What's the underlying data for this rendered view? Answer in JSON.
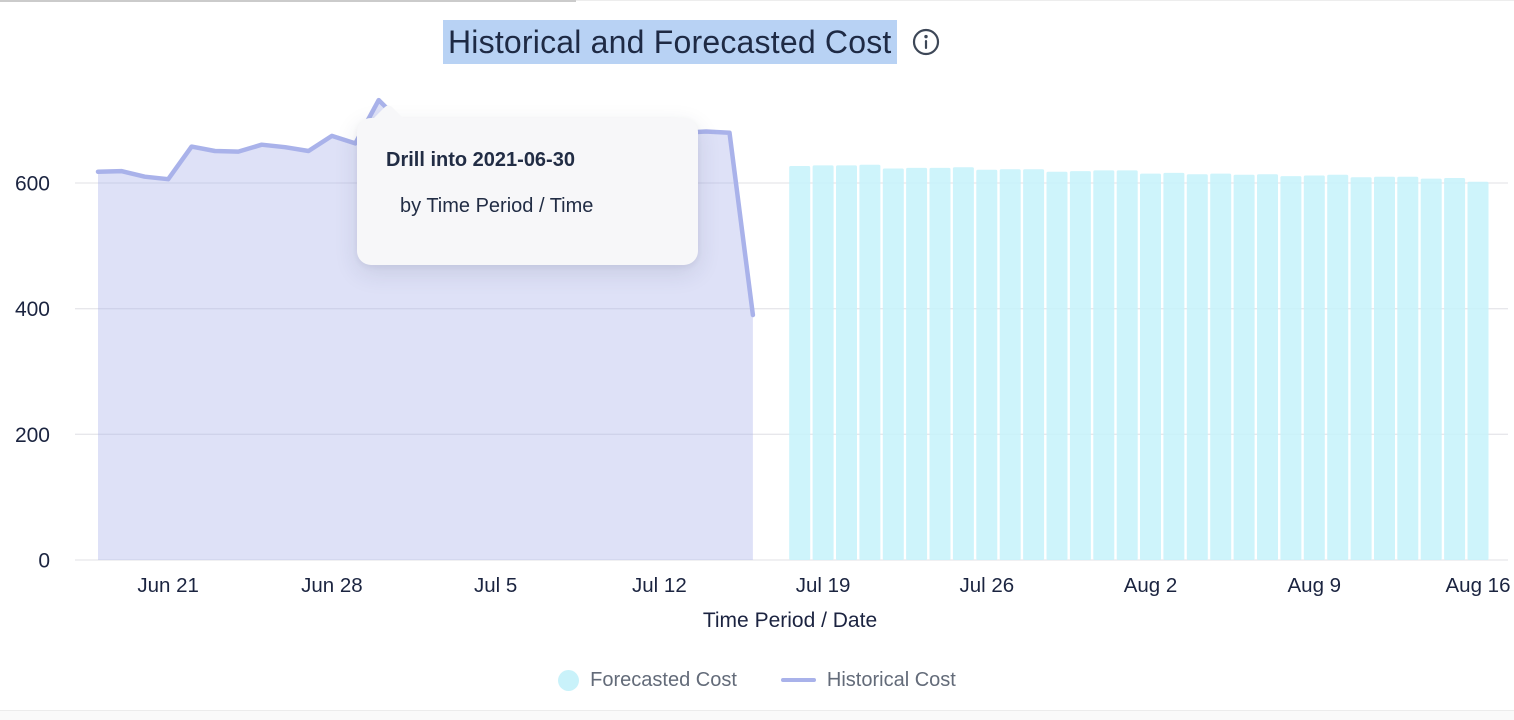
{
  "header": {
    "title": "Historical and Forecasted Cost",
    "info_icon": "info-circle-icon",
    "title_selection_color": "#b8d2f4",
    "title_color": "#1e2a44"
  },
  "tooltip": {
    "title": "Drill into 2021-06-30",
    "subtitle": "by Time Period / Time",
    "background": "#f7f7f9"
  },
  "legend": [
    {
      "label": "Forecasted Cost",
      "swatch": "dot",
      "color": "#c9f2fa"
    },
    {
      "label": "Historical Cost",
      "swatch": "line",
      "color": "#a9b2ea"
    }
  ],
  "chart_data": {
    "type": "area+bar",
    "title": "Historical and Forecasted Cost",
    "xlabel": "Time Period / Date",
    "ylabel": "",
    "grid": "horizontal",
    "legend_position": "bottom",
    "ylim": [
      0,
      745
    ],
    "y_ticks": [
      0,
      200,
      400,
      600
    ],
    "x_ticks": [
      {
        "label": "Jun 21",
        "date": "2021-06-21"
      },
      {
        "label": "Jun 28",
        "date": "2021-06-28"
      },
      {
        "label": "Jul 5",
        "date": "2021-07-05"
      },
      {
        "label": "Jul 12",
        "date": "2021-07-12"
      },
      {
        "label": "Jul 19",
        "date": "2021-07-19"
      },
      {
        "label": "Jul 26",
        "date": "2021-07-26"
      },
      {
        "label": "Aug 2",
        "date": "2021-08-02"
      },
      {
        "label": "Aug 9",
        "date": "2021-08-09"
      },
      {
        "label": "Aug 16",
        "date": "2021-08-16"
      }
    ],
    "series": [
      {
        "name": "Historical Cost",
        "type": "area-line",
        "line_color": "#a9b2ea",
        "fill_color": "rgba(169,177,234,0.38)",
        "dates": [
          "2021-06-18",
          "2021-06-19",
          "2021-06-20",
          "2021-06-21",
          "2021-06-22",
          "2021-06-23",
          "2021-06-24",
          "2021-06-25",
          "2021-06-26",
          "2021-06-27",
          "2021-06-28",
          "2021-06-29",
          "2021-06-30",
          "2021-07-01",
          "2021-07-02",
          "2021-07-03",
          "2021-07-04",
          "2021-07-05",
          "2021-07-06",
          "2021-07-07",
          "2021-07-08",
          "2021-07-09",
          "2021-07-10",
          "2021-07-11",
          "2021-07-12",
          "2021-07-13",
          "2021-07-14",
          "2021-07-15",
          "2021-07-16"
        ],
        "values": [
          618,
          619,
          610,
          606,
          658,
          651,
          650,
          661,
          657,
          651,
          675,
          663,
          732,
          695,
          682,
          674,
          670,
          672,
          667,
          669,
          671,
          670,
          673,
          675,
          678,
          680,
          682,
          680,
          390
        ]
      },
      {
        "name": "Forecasted Cost",
        "type": "bar",
        "bar_color": "rgba(197,242,250,0.85)",
        "dates": [
          "2021-07-18",
          "2021-07-19",
          "2021-07-20",
          "2021-07-21",
          "2021-07-22",
          "2021-07-23",
          "2021-07-24",
          "2021-07-25",
          "2021-07-26",
          "2021-07-27",
          "2021-07-28",
          "2021-07-29",
          "2021-07-30",
          "2021-07-31",
          "2021-08-01",
          "2021-08-02",
          "2021-08-03",
          "2021-08-04",
          "2021-08-05",
          "2021-08-06",
          "2021-08-07",
          "2021-08-08",
          "2021-08-09",
          "2021-08-10",
          "2021-08-11",
          "2021-08-12",
          "2021-08-13",
          "2021-08-14",
          "2021-08-15",
          "2021-08-16"
        ],
        "values": [
          627,
          628,
          628,
          629,
          623,
          624,
          624,
          625,
          621,
          622,
          622,
          618,
          619,
          620,
          620,
          615,
          616,
          614,
          615,
          613,
          614,
          611,
          612,
          613,
          609,
          610,
          610,
          607,
          608,
          602
        ]
      }
    ],
    "colors": {
      "grid": "#e7e7eb",
      "axis_text": "#1b2440",
      "legend_text": "#636b79"
    }
  }
}
